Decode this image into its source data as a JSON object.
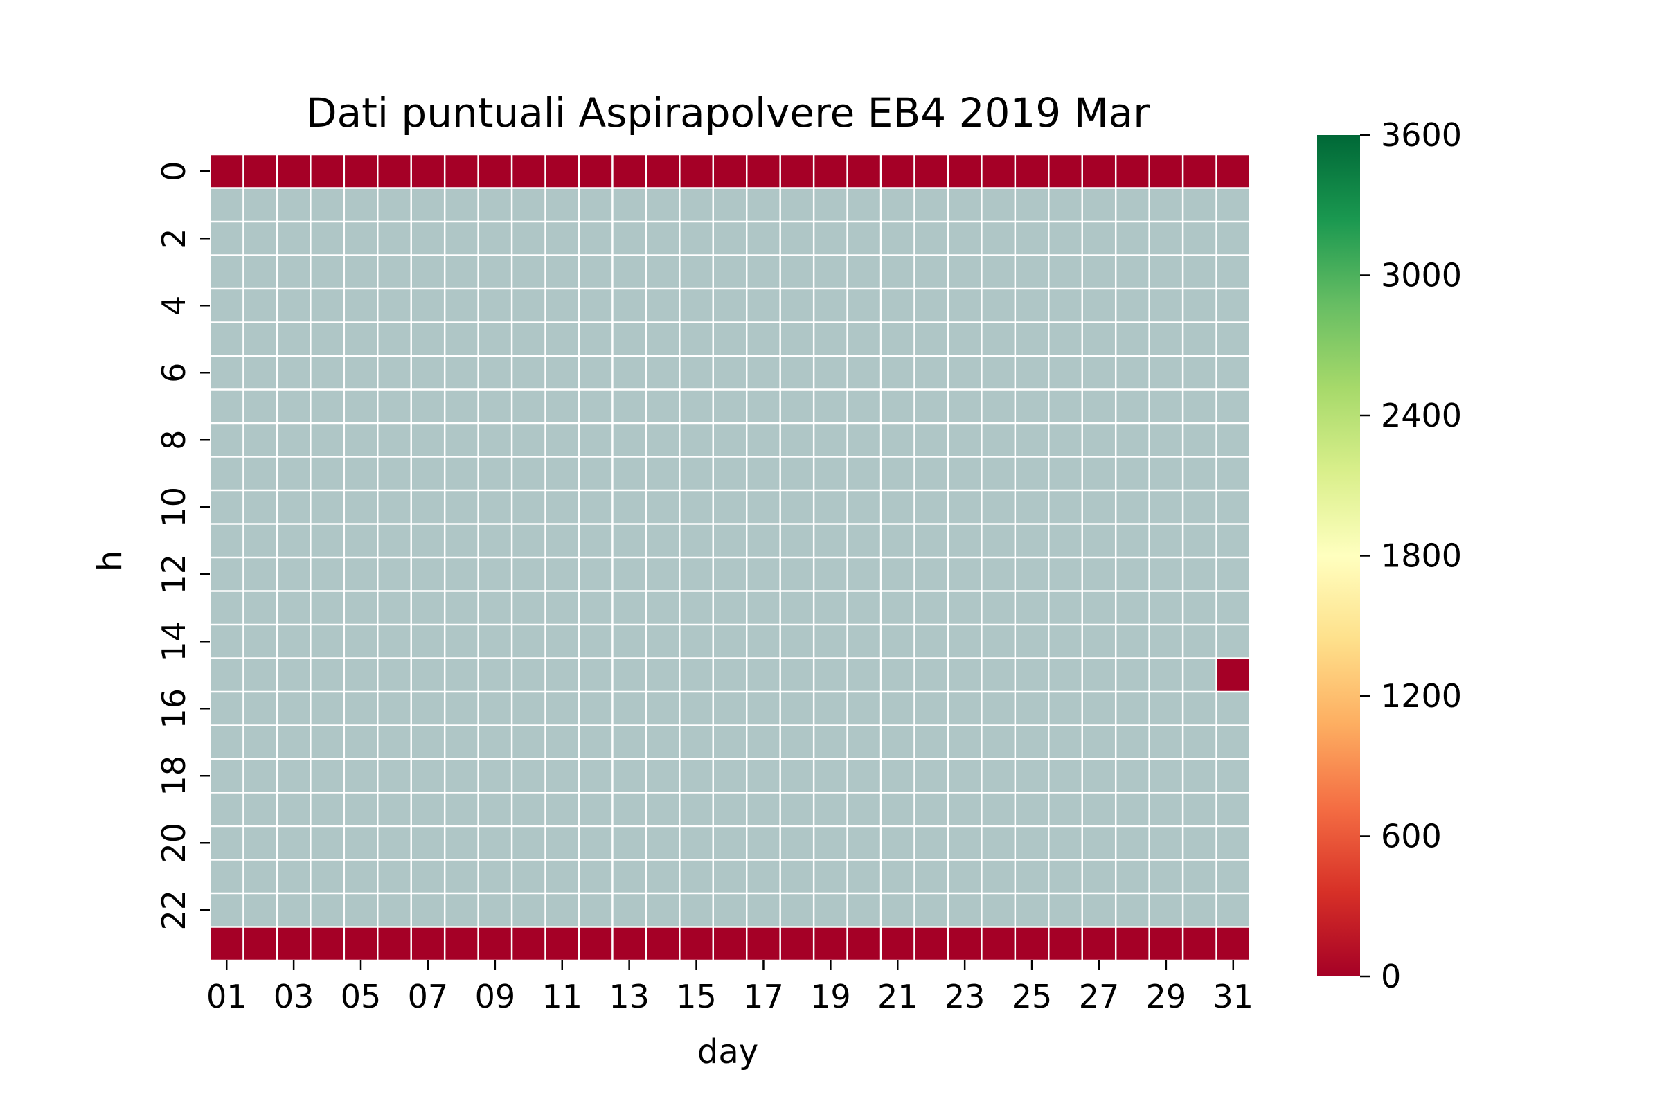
{
  "chart_data": {
    "type": "heatmap",
    "title": "Dati puntuali Aspirapolvere EB4 2019 Mar",
    "xlabel": "day",
    "ylabel": "h",
    "x_categories": [
      "01",
      "02",
      "03",
      "04",
      "05",
      "06",
      "07",
      "08",
      "09",
      "10",
      "11",
      "12",
      "13",
      "14",
      "15",
      "16",
      "17",
      "18",
      "19",
      "20",
      "21",
      "22",
      "23",
      "24",
      "25",
      "26",
      "27",
      "28",
      "29",
      "30",
      "31"
    ],
    "x_tick_labels": [
      "01",
      "03",
      "05",
      "07",
      "09",
      "11",
      "13",
      "15",
      "17",
      "19",
      "21",
      "23",
      "25",
      "27",
      "29",
      "31"
    ],
    "y_categories": [
      "0",
      "1",
      "2",
      "3",
      "4",
      "5",
      "6",
      "7",
      "8",
      "9",
      "10",
      "11",
      "12",
      "13",
      "14",
      "15",
      "16",
      "17",
      "18",
      "19",
      "20",
      "21",
      "22",
      "23"
    ],
    "y_tick_labels": [
      "0",
      "2",
      "4",
      "6",
      "8",
      "10",
      "12",
      "14",
      "16",
      "18",
      "20",
      "22"
    ],
    "values_description_note": null,
    "filled_cells": [
      {
        "h": 0,
        "days": "all",
        "value": 0
      },
      {
        "h": 23,
        "days": "all",
        "value": 0
      },
      {
        "h": 15,
        "day": "31",
        "value": 0
      }
    ],
    "missing_cell_color": "#afc6c6",
    "grid_line_color": "#ffffff",
    "colormap": "RdYlGn",
    "colorbar": {
      "vmin": 0,
      "vmax": 3600,
      "ticks": [
        "0",
        "600",
        "1200",
        "1800",
        "2400",
        "3000",
        "3600"
      ],
      "stops": [
        "#a50026",
        "#d73027",
        "#f46d43",
        "#fdae61",
        "#fee08b",
        "#ffffbf",
        "#d9ef8b",
        "#a6d96a",
        "#66bd63",
        "#1a9850",
        "#006837"
      ]
    }
  }
}
